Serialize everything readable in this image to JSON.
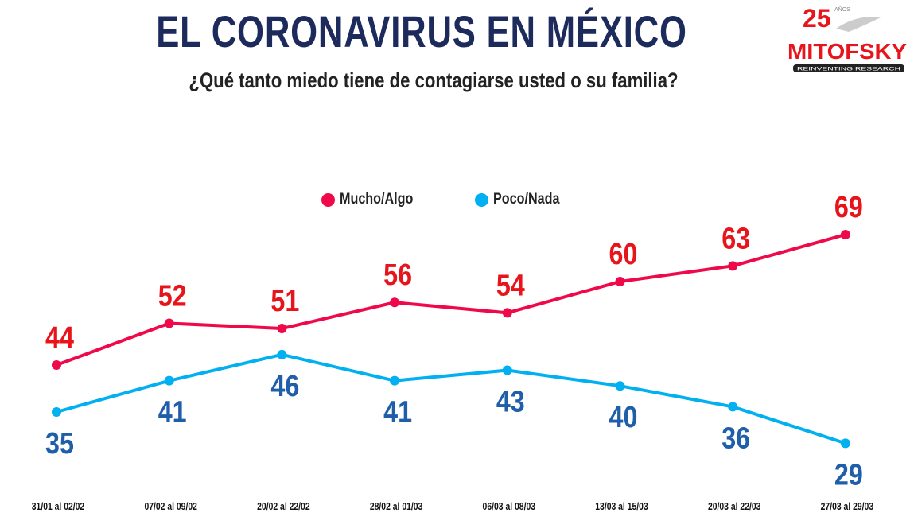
{
  "header": {
    "title": "EL CORONAVIRUS EN MÉXICO",
    "subtitle": "¿Qué tanto miedo tiene de contagiarse usted o su familia?"
  },
  "logo": {
    "years": "25",
    "anos": "AÑOS",
    "brand": "MITOFSKY",
    "tagline": "REINVENTING RESEARCH"
  },
  "chart_data": {
    "type": "line",
    "title": "",
    "xlabel": "",
    "ylabel": "",
    "ylim": [
      20,
      100
    ],
    "grid": false,
    "legend_placement": "top-center",
    "categories": [
      "31/01 al 02/02",
      "07/02 al 09/02",
      "20/02 al 22/02",
      "28/02 al 01/03",
      "06/03 al 08/03",
      "13/03 al 15/03",
      "20/03 al 22/03",
      "27/03 al 29/03"
    ],
    "series": [
      {
        "name": "Mucho/Algo",
        "values": [
          44,
          52,
          51,
          56,
          54,
          60,
          63,
          69
        ],
        "color": "#f0094a",
        "label_color": "#e8141b"
      },
      {
        "name": "Poco/Nada",
        "values": [
          35,
          41,
          46,
          41,
          43,
          40,
          36,
          29
        ],
        "color": "#00b0f0",
        "label_color": "#1f5ea8"
      }
    ]
  }
}
